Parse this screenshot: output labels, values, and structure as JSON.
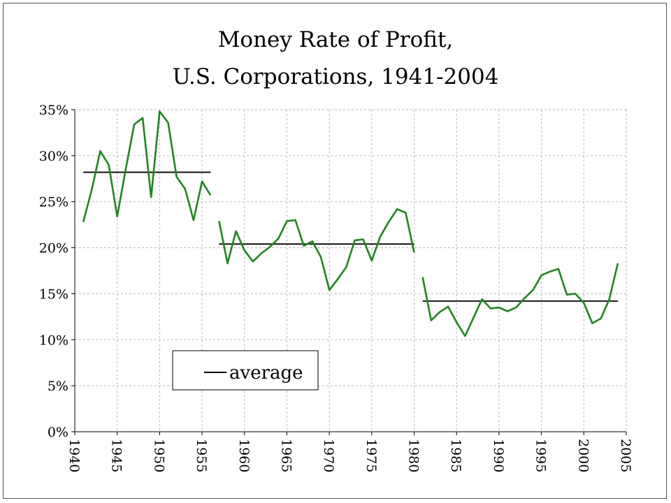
{
  "chart_data": {
    "type": "line",
    "title_lines": [
      "Money Rate of Profit,",
      "U.S. Corporations, 1941-2004"
    ],
    "xlabel": "",
    "ylabel": "",
    "xlim": [
      1940,
      2005
    ],
    "ylim": [
      0,
      35
    ],
    "x_ticks": [
      1940,
      1945,
      1950,
      1955,
      1960,
      1965,
      1970,
      1975,
      1980,
      1985,
      1990,
      1995,
      2000,
      2005
    ],
    "y_ticks": [
      0,
      5,
      10,
      15,
      20,
      25,
      30,
      35
    ],
    "y_tick_suffix": "%",
    "grid": true,
    "line_color": "#1a8a1a",
    "series": [
      {
        "x": [
          1941,
          1942,
          1943,
          1944,
          1945,
          1946,
          1947,
          1948,
          1949,
          1950,
          1951,
          1952,
          1953,
          1954,
          1955,
          1956
        ],
        "values": [
          22.8,
          26.3,
          30.5,
          29.0,
          23.4,
          28.5,
          33.4,
          34.1,
          25.5,
          34.8,
          33.6,
          27.7,
          26.4,
          23.0,
          27.2,
          25.7
        ]
      },
      {
        "x": [
          1957,
          1958,
          1959,
          1960,
          1961,
          1962,
          1963,
          1964,
          1965,
          1966,
          1967,
          1968,
          1969,
          1970,
          1971,
          1972,
          1973,
          1974,
          1975,
          1976,
          1977,
          1978,
          1979,
          1980
        ],
        "values": [
          22.9,
          18.3,
          21.8,
          19.7,
          18.5,
          19.4,
          20.1,
          21.0,
          22.9,
          23.0,
          20.2,
          20.7,
          19.0,
          15.4,
          16.6,
          17.9,
          20.8,
          20.9,
          18.6,
          21.2,
          22.8,
          24.2,
          23.8,
          19.5
        ]
      },
      {
        "x": [
          1981,
          1982,
          1983,
          1984,
          1985,
          1986,
          1987,
          1988,
          1989,
          1990,
          1991,
          1992,
          1993,
          1994,
          1995,
          1996,
          1997,
          1998,
          1999,
          2000,
          2001,
          2002,
          2003,
          2004
        ],
        "values": [
          16.8,
          12.1,
          13.0,
          13.6,
          11.9,
          10.4,
          12.4,
          14.4,
          13.4,
          13.5,
          13.1,
          13.5,
          14.5,
          15.4,
          17.0,
          17.4,
          17.7,
          14.9,
          15.0,
          14.0,
          11.8,
          12.3,
          14.4,
          18.3
        ]
      }
    ],
    "averages": [
      {
        "x_start": 1941,
        "x_end": 1956,
        "value": 28.2
      },
      {
        "x_start": 1957,
        "x_end": 1980,
        "value": 20.4
      },
      {
        "x_start": 1981,
        "x_end": 2004,
        "value": 14.2
      }
    ],
    "legend": {
      "label": "average",
      "placement": "bottom-left"
    }
  }
}
